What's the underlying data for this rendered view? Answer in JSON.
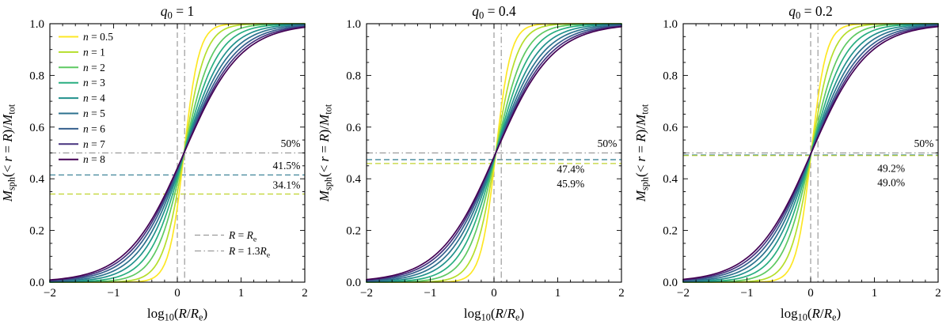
{
  "figure": {
    "background": "#ffffff",
    "axis_color": "#000000",
    "gray": "#9b9b9b",
    "accent_teal": "#2a788e",
    "accent_yellow": "#c0d22e"
  },
  "chart_data": {
    "type": "line",
    "n_panels": 3,
    "xlabel_text": "log10(R/Re)",
    "xlabel_parts": [
      {
        "t": "log"
      },
      {
        "t": "10",
        "sub": true
      },
      {
        "t": "("
      },
      {
        "t": "R",
        "i": true
      },
      {
        "t": "/"
      },
      {
        "t": "R",
        "i": true
      },
      {
        "t": "e",
        "sub": true
      },
      {
        "t": ")"
      }
    ],
    "ylabel_text": "Msph(< r = R)/Mtot",
    "ylabel_parts": [
      {
        "t": "M",
        "i": true
      },
      {
        "t": "sph",
        "sub": true
      },
      {
        "t": "(< "
      },
      {
        "t": "r",
        "i": true
      },
      {
        "t": " = "
      },
      {
        "t": "R",
        "i": true
      },
      {
        "t": ")/"
      },
      {
        "t": "M",
        "i": true
      },
      {
        "t": "tot",
        "sub": true
      }
    ],
    "xlim": [
      -2,
      2
    ],
    "ylim": [
      0.0,
      1.0
    ],
    "xticks": [
      -2,
      -1,
      0,
      1,
      2
    ],
    "xtick_labels": [
      "−2",
      "−1",
      "0",
      "1",
      "2"
    ],
    "yticks": [
      0.0,
      0.2,
      0.4,
      0.6,
      0.8,
      1.0
    ],
    "ytick_labels": [
      "0.0",
      "0.2",
      "0.4",
      "0.6",
      "0.8",
      "1.0"
    ],
    "x_minor_step": 0.2,
    "y_minor_step": 0.05,
    "grid": false,
    "legend_position": "upper-left of first panel (n values); lower-middle of first panel (reference radii)",
    "curve_model": "y = 1 / (1 + exp(-k * (x - x0))) ; logistic approximation of each enclosed-mass curve, k per series, x0 per panel",
    "series": [
      {
        "label_text": "n = 0.5",
        "n": 0.5,
        "color": "#fde725",
        "k": 8.5
      },
      {
        "label_text": "n = 1",
        "n": 1,
        "color": "#b5de2b",
        "k": 6.0
      },
      {
        "label_text": "n = 2",
        "n": 2,
        "color": "#5ec962",
        "k": 4.5
      },
      {
        "label_text": "n = 3",
        "n": 3,
        "color": "#28ae80",
        "k": 3.7
      },
      {
        "label_text": "n = 4",
        "n": 4,
        "color": "#21918c",
        "k": 3.15
      },
      {
        "label_text": "n = 5",
        "n": 5,
        "color": "#2c728e",
        "k": 2.8
      },
      {
        "label_text": "n = 6",
        "n": 6,
        "color": "#355f8d",
        "k": 2.55
      },
      {
        "label_text": "n = 7",
        "n": 7,
        "color": "#46327e",
        "k": 2.38
      },
      {
        "label_text": "n = 8",
        "n": 8,
        "color": "#440154",
        "k": 2.25
      }
    ],
    "vlines": [
      {
        "x": 0.0,
        "style": "dashed",
        "color": "#9b9b9b",
        "label_text": "R = Re",
        "label_parts": [
          {
            "t": "R",
            "i": true
          },
          {
            "t": " = "
          },
          {
            "t": "R",
            "i": true
          },
          {
            "t": "e",
            "sub": true
          }
        ]
      },
      {
        "x": 0.1139,
        "style": "dashdot",
        "color": "#9b9b9b",
        "label_text": "R = 1.3Re",
        "label_parts": [
          {
            "t": "R",
            "i": true
          },
          {
            "t": " = 1.3"
          },
          {
            "t": "R",
            "i": true
          },
          {
            "t": "e",
            "sub": true
          }
        ]
      }
    ],
    "panels": [
      {
        "title_text": "q0 = 1",
        "title_parts": [
          {
            "t": "q",
            "i": true
          },
          {
            "t": "0",
            "sub": true
          },
          {
            "t": " = 1"
          }
        ],
        "x0": 0.105,
        "hlines": [
          {
            "y": 0.5,
            "style": "dashdot",
            "color": "#9b9b9b",
            "label": "50%",
            "label_x": 1.93,
            "label_y": 0.523
          },
          {
            "y": 0.415,
            "style": "dashed",
            "color": "#2a788e",
            "label": "41.5%",
            "label_x": 1.93,
            "label_y": 0.437
          },
          {
            "y": 0.341,
            "style": "dashed",
            "color": "#c0d22e",
            "label": "34.1%",
            "label_x": 1.93,
            "label_y": 0.362
          }
        ],
        "show_series_legend": true,
        "show_line_legend": true
      },
      {
        "title_text": "q0 = 0.4",
        "title_parts": [
          {
            "t": "q",
            "i": true
          },
          {
            "t": "0",
            "sub": true
          },
          {
            "t": " = 0.4"
          }
        ],
        "x0": 0.028,
        "hlines": [
          {
            "y": 0.5,
            "style": "dashdot",
            "color": "#9b9b9b",
            "label": "50%",
            "label_x": 1.93,
            "label_y": 0.523
          },
          {
            "y": 0.474,
            "style": "dashed",
            "color": "#2a788e",
            "label": "47.4%",
            "label_x": 1.42,
            "label_y": 0.424
          },
          {
            "y": 0.459,
            "style": "dashed",
            "color": "#c0d22e",
            "label": "45.9%",
            "label_x": 1.42,
            "label_y": 0.367
          }
        ],
        "show_series_legend": false,
        "show_line_legend": false
      },
      {
        "title_text": "q0 = 0.2",
        "title_parts": [
          {
            "t": "q",
            "i": true
          },
          {
            "t": "0",
            "sub": true
          },
          {
            "t": " = 0.2"
          }
        ],
        "x0": 0.008,
        "hlines": [
          {
            "y": 0.5,
            "style": "dashdot",
            "color": "#9b9b9b",
            "label": "50%",
            "label_x": 1.93,
            "label_y": 0.523
          },
          {
            "y": 0.492,
            "style": "dashed",
            "color": "#2a788e",
            "label": "49.2%",
            "label_x": 1.48,
            "label_y": 0.427
          },
          {
            "y": 0.49,
            "style": "dashed",
            "color": "#c0d22e",
            "label": "49.0%",
            "label_x": 1.48,
            "label_y": 0.371
          }
        ],
        "show_series_legend": false,
        "show_line_legend": false
      }
    ]
  }
}
